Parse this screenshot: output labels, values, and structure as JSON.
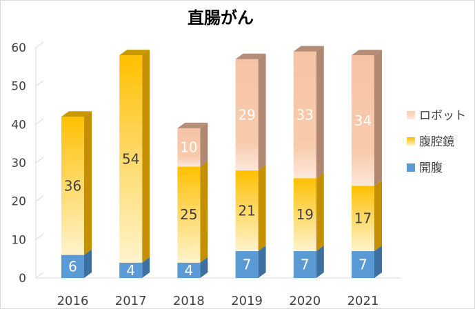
{
  "chart_data": {
    "type": "bar",
    "stacked": true,
    "style": "3d",
    "title": "直腸がん",
    "categories": [
      "2016",
      "2017",
      "2018",
      "2019",
      "2020",
      "2021"
    ],
    "series": [
      {
        "name": "開腹",
        "values": [
          6,
          4,
          4,
          7,
          7,
          7
        ],
        "color": "#5b9bd5"
      },
      {
        "name": "腹腔鏡",
        "values": [
          36,
          54,
          25,
          21,
          19,
          17
        ],
        "color": "#ffc000"
      },
      {
        "name": "ロボット",
        "values": [
          null,
          null,
          10,
          29,
          33,
          34
        ],
        "color": "#f8cbad"
      }
    ],
    "y_ticks": [
      "0",
      "10",
      "20",
      "30",
      "40",
      "50",
      "60"
    ],
    "ylim": [
      0,
      60
    ],
    "grid": false,
    "legend_position": "right"
  }
}
